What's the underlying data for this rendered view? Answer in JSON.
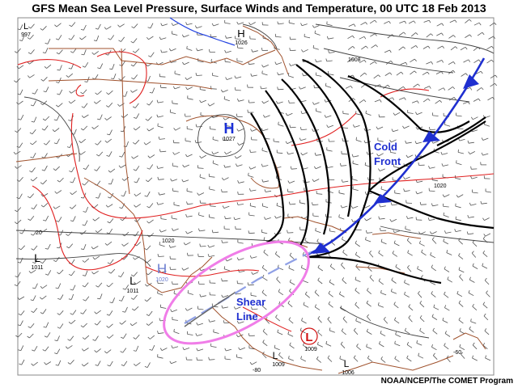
{
  "title": "GFS Mean Sea Level Pressure, Surface Winds and Temperature, 00 UTC 18 Feb 2013",
  "credit": "NOAA/NCEP/The COMET Program",
  "labels": {
    "cold_front": [
      "Cold",
      "Front"
    ],
    "shear_line": [
      "Shear",
      "Line"
    ]
  },
  "pressure_centers": [
    {
      "letter": "H",
      "value": "1026",
      "color": "#000000"
    },
    {
      "letter": "H",
      "value": "1027",
      "color": "#1a2fd6"
    },
    {
      "letter": "H",
      "value": "1020",
      "color": "#6a7ccf"
    },
    {
      "letter": "L",
      "value": "997",
      "color": "#000000"
    },
    {
      "letter": "L",
      "value": "1011",
      "color": "#000000"
    },
    {
      "letter": "L",
      "value": "1011",
      "color": "#000000"
    },
    {
      "letter": "L",
      "value": "1009",
      "color": "#d01010"
    },
    {
      "letter": "L",
      "value": "1009",
      "color": "#000000"
    },
    {
      "letter": "L",
      "value": "1006",
      "color": "#000000"
    }
  ],
  "isobar_labels": [
    "1008",
    "1020",
    "1020",
    "20",
    "-80",
    "-60"
  ],
  "colors": {
    "front": "#1f2fd0",
    "shear_ellipse": "#f07de8",
    "temperature": "#e02020",
    "land": "#a0522d",
    "isobar": "#000000",
    "freezing_line": "#2040e0"
  }
}
